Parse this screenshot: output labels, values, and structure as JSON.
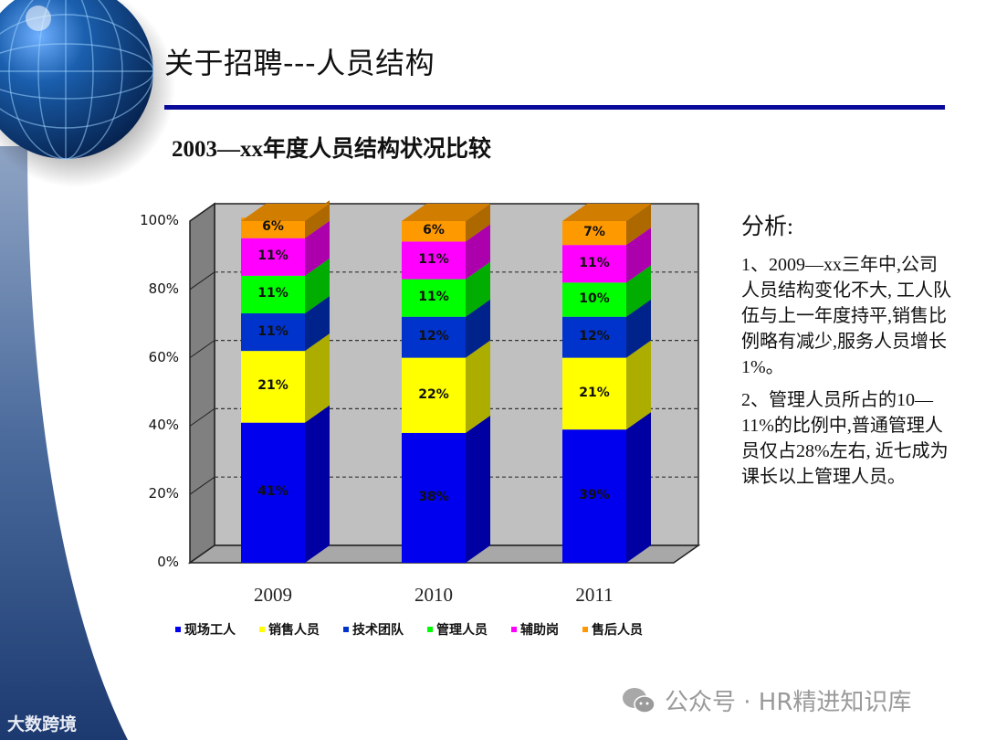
{
  "slide": {
    "title": "关于招聘---人员结构",
    "subtitle": "2003—xx年度人员结构状况比较"
  },
  "chart_data": {
    "type": "bar",
    "stacked": true,
    "percent_stacked": true,
    "three_d": true,
    "title": "2003—xx年度人员结构状况比较",
    "xlabel": "",
    "ylabel": "",
    "ylim": [
      0,
      100
    ],
    "yticks": [
      "0%",
      "20%",
      "40%",
      "60%",
      "80%",
      "100%"
    ],
    "grid": "dashed horizontal",
    "legend_position": "bottom",
    "categories": [
      "2009",
      "2010",
      "2011"
    ],
    "series": [
      {
        "name": "现场工人",
        "color": "#0000ee",
        "values": [
          41,
          38,
          39
        ]
      },
      {
        "name": "销售人员",
        "color": "#ffff00",
        "values": [
          21,
          22,
          21
        ]
      },
      {
        "name": "技术团队",
        "color": "#0033cc",
        "values": [
          11,
          12,
          12
        ]
      },
      {
        "name": "管理人员",
        "color": "#00ff00",
        "values": [
          11,
          11,
          10
        ]
      },
      {
        "name": "辅助岗",
        "color": "#ff00ff",
        "values": [
          11,
          11,
          11
        ]
      },
      {
        "name": "售后人员",
        "color": "#ff9900",
        "values": [
          6,
          6,
          7
        ]
      }
    ],
    "data_labels": [
      [
        "41%",
        "21%",
        "11%",
        "11%",
        "11%",
        "6%"
      ],
      [
        "38%",
        "22%",
        "12%",
        "11%",
        "11%",
        "6%"
      ],
      [
        "39%",
        "21%",
        "12%",
        "10%",
        "11%",
        "7%"
      ]
    ]
  },
  "analysis": {
    "heading": "分析:",
    "point1": "1、2009—xx三年中,公司人员结构变化不大, 工人队伍与上一年度持平,销售比例略有减少,服务人员增长1%。",
    "point2": "2、管理人员所占的10—11%的比例中,普通管理人员仅占28%左右, 近七成为课长以上管理人员。"
  },
  "footer": {
    "watermark": "公众号 · HR精进知识库",
    "brand": "大数跨境"
  }
}
